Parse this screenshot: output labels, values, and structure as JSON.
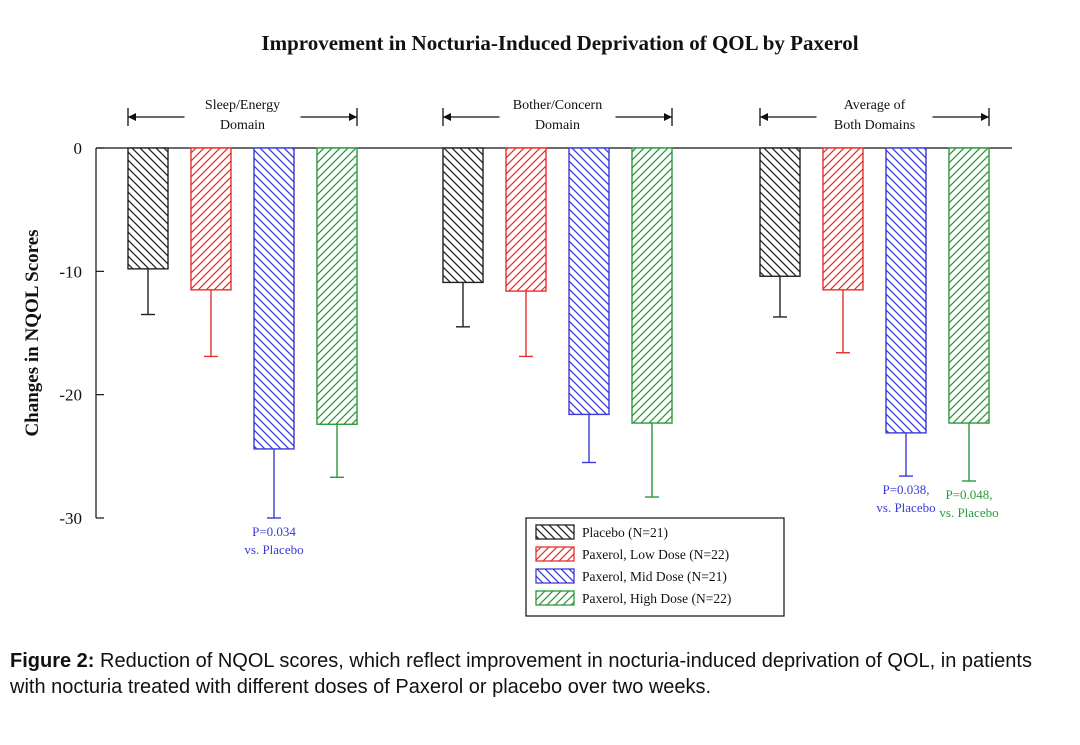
{
  "chart_data": {
    "type": "bar",
    "title": "Improvement in Nocturia-Induced Deprivation of QOL by Paxerol",
    "ylabel": "Changes in NQOL Scores",
    "xlabel": "",
    "ylim": [
      -30,
      0
    ],
    "yticks": [
      0,
      -10,
      -20,
      -30
    ],
    "grid": false,
    "legend_position": "bottom-center",
    "categories": [
      {
        "line1": "Sleep/Energy",
        "line2": "Domain"
      },
      {
        "line1": "Bother/Concern",
        "line2": "Domain"
      },
      {
        "line1": "Average of",
        "line2": "Both Domains"
      }
    ],
    "series": [
      {
        "name": "Placebo (N=21)",
        "color": "#222222",
        "values": [
          -9.8,
          -10.9,
          -10.4
        ],
        "errors": [
          3.7,
          3.6,
          3.3
        ]
      },
      {
        "name": "Paxerol, Low Dose (N=22)",
        "color": "#e8302e",
        "values": [
          -11.5,
          -11.6,
          -11.5
        ],
        "errors": [
          5.4,
          5.3,
          5.1
        ]
      },
      {
        "name": "Paxerol, Mid Dose (N=21)",
        "color": "#3a3ad6",
        "values": [
          -24.4,
          -21.6,
          -23.1
        ],
        "errors": [
          5.6,
          3.9,
          3.5
        ]
      },
      {
        "name": "Paxerol, High Dose (N=22)",
        "color": "#2a9a3a",
        "values": [
          -22.4,
          -22.3,
          -22.3
        ],
        "errors": [
          4.3,
          6.0,
          4.7
        ]
      }
    ],
    "annotations": [
      {
        "category": 0,
        "series": 2,
        "line1": "P=0.034",
        "line2": "vs. Placebo",
        "color": "#3a3ad6"
      },
      {
        "category": 2,
        "series": 2,
        "line1": "P=0.038,",
        "line2": "vs. Placebo",
        "color": "#3a3ad6"
      },
      {
        "category": 2,
        "series": 3,
        "line1": "P=0.048,",
        "line2": "vs. Placebo",
        "color": "#2a9a3a"
      }
    ]
  },
  "caption": {
    "label": "Figure 2:",
    "text": " Reduction of NQOL scores, which reflect improvement in nocturia-induced deprivation of QOL, in patients with nocturia treated with different doses of Paxerol or placebo over two weeks."
  }
}
